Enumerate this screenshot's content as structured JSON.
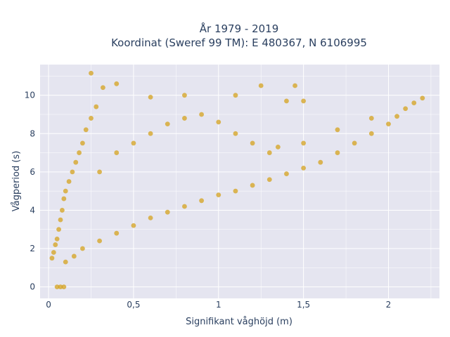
{
  "chart_data": {
    "type": "scatter",
    "title_line1": "År 1979 - 2019",
    "title_line2": "Koordinat (Sweref 99 TM): E 480367, N 6106995",
    "xlabel": "Signifikant våghöjd (m)",
    "ylabel": "Vågperiod (s)",
    "xlim": [
      -0.05,
      2.3
    ],
    "ylim": [
      -0.6,
      11.6
    ],
    "x_ticks": [
      {
        "value": 0,
        "label": "0"
      },
      {
        "value": 0.5,
        "label": "0,5"
      },
      {
        "value": 1,
        "label": "1"
      },
      {
        "value": 1.5,
        "label": "1,5"
      },
      {
        "value": 2,
        "label": "2"
      }
    ],
    "y_ticks": [
      {
        "value": 0,
        "label": "0"
      },
      {
        "value": 2,
        "label": "2"
      },
      {
        "value": 4,
        "label": "4"
      },
      {
        "value": 6,
        "label": "6"
      },
      {
        "value": 8,
        "label": "8"
      },
      {
        "value": 10,
        "label": "10"
      }
    ],
    "grid": true,
    "marker_color": "#D4A21D",
    "plot_background": "#E5E5F0",
    "grid_color": "#ffffff",
    "series": [
      {
        "points": [
          [
            0.02,
            1.5
          ],
          [
            0.03,
            1.8
          ],
          [
            0.04,
            2.2
          ],
          [
            0.05,
            2.5
          ],
          [
            0.06,
            3.0
          ],
          [
            0.07,
            3.5
          ],
          [
            0.08,
            4.0
          ],
          [
            0.09,
            4.6
          ],
          [
            0.1,
            5.0
          ],
          [
            0.12,
            5.5
          ],
          [
            0.14,
            6.0
          ],
          [
            0.16,
            6.5
          ],
          [
            0.18,
            7.0
          ],
          [
            0.2,
            7.5
          ],
          [
            0.22,
            8.2
          ],
          [
            0.25,
            8.8
          ],
          [
            0.28,
            9.4
          ],
          [
            0.25,
            11.15
          ],
          [
            0.32,
            10.4
          ],
          [
            0.4,
            10.6
          ],
          [
            0.6,
            9.9
          ],
          [
            0.8,
            10.0
          ],
          [
            1.1,
            10.0
          ],
          [
            1.25,
            10.5
          ],
          [
            1.45,
            10.5
          ],
          [
            1.4,
            9.7
          ],
          [
            1.5,
            9.7
          ],
          [
            0.05,
            0.0
          ],
          [
            0.07,
            0.0
          ],
          [
            0.09,
            0.0
          ],
          [
            0.1,
            1.3
          ],
          [
            0.15,
            1.6
          ],
          [
            0.2,
            2.0
          ],
          [
            0.3,
            2.4
          ],
          [
            0.4,
            2.8
          ],
          [
            0.5,
            3.2
          ],
          [
            0.6,
            3.6
          ],
          [
            0.7,
            3.9
          ],
          [
            0.8,
            4.2
          ],
          [
            0.9,
            4.5
          ],
          [
            1.0,
            4.8
          ],
          [
            1.1,
            5.0
          ],
          [
            1.2,
            5.3
          ],
          [
            1.3,
            5.6
          ],
          [
            1.4,
            5.9
          ],
          [
            1.5,
            6.2
          ],
          [
            1.6,
            6.5
          ],
          [
            1.7,
            7.0
          ],
          [
            1.8,
            7.5
          ],
          [
            1.9,
            8.0
          ],
          [
            2.0,
            8.5
          ],
          [
            2.05,
            8.9
          ],
          [
            2.1,
            9.3
          ],
          [
            2.15,
            9.6
          ],
          [
            2.2,
            9.85
          ],
          [
            0.3,
            6.0
          ],
          [
            0.4,
            7.0
          ],
          [
            0.5,
            7.5
          ],
          [
            0.6,
            8.0
          ],
          [
            0.7,
            8.5
          ],
          [
            0.8,
            8.8
          ],
          [
            0.9,
            9.0
          ],
          [
            1.0,
            8.6
          ],
          [
            1.1,
            8.0
          ],
          [
            1.2,
            7.5
          ],
          [
            1.3,
            7.0
          ],
          [
            1.35,
            7.3
          ],
          [
            1.5,
            7.5
          ],
          [
            1.7,
            8.2
          ],
          [
            1.9,
            8.8
          ]
        ]
      }
    ]
  }
}
